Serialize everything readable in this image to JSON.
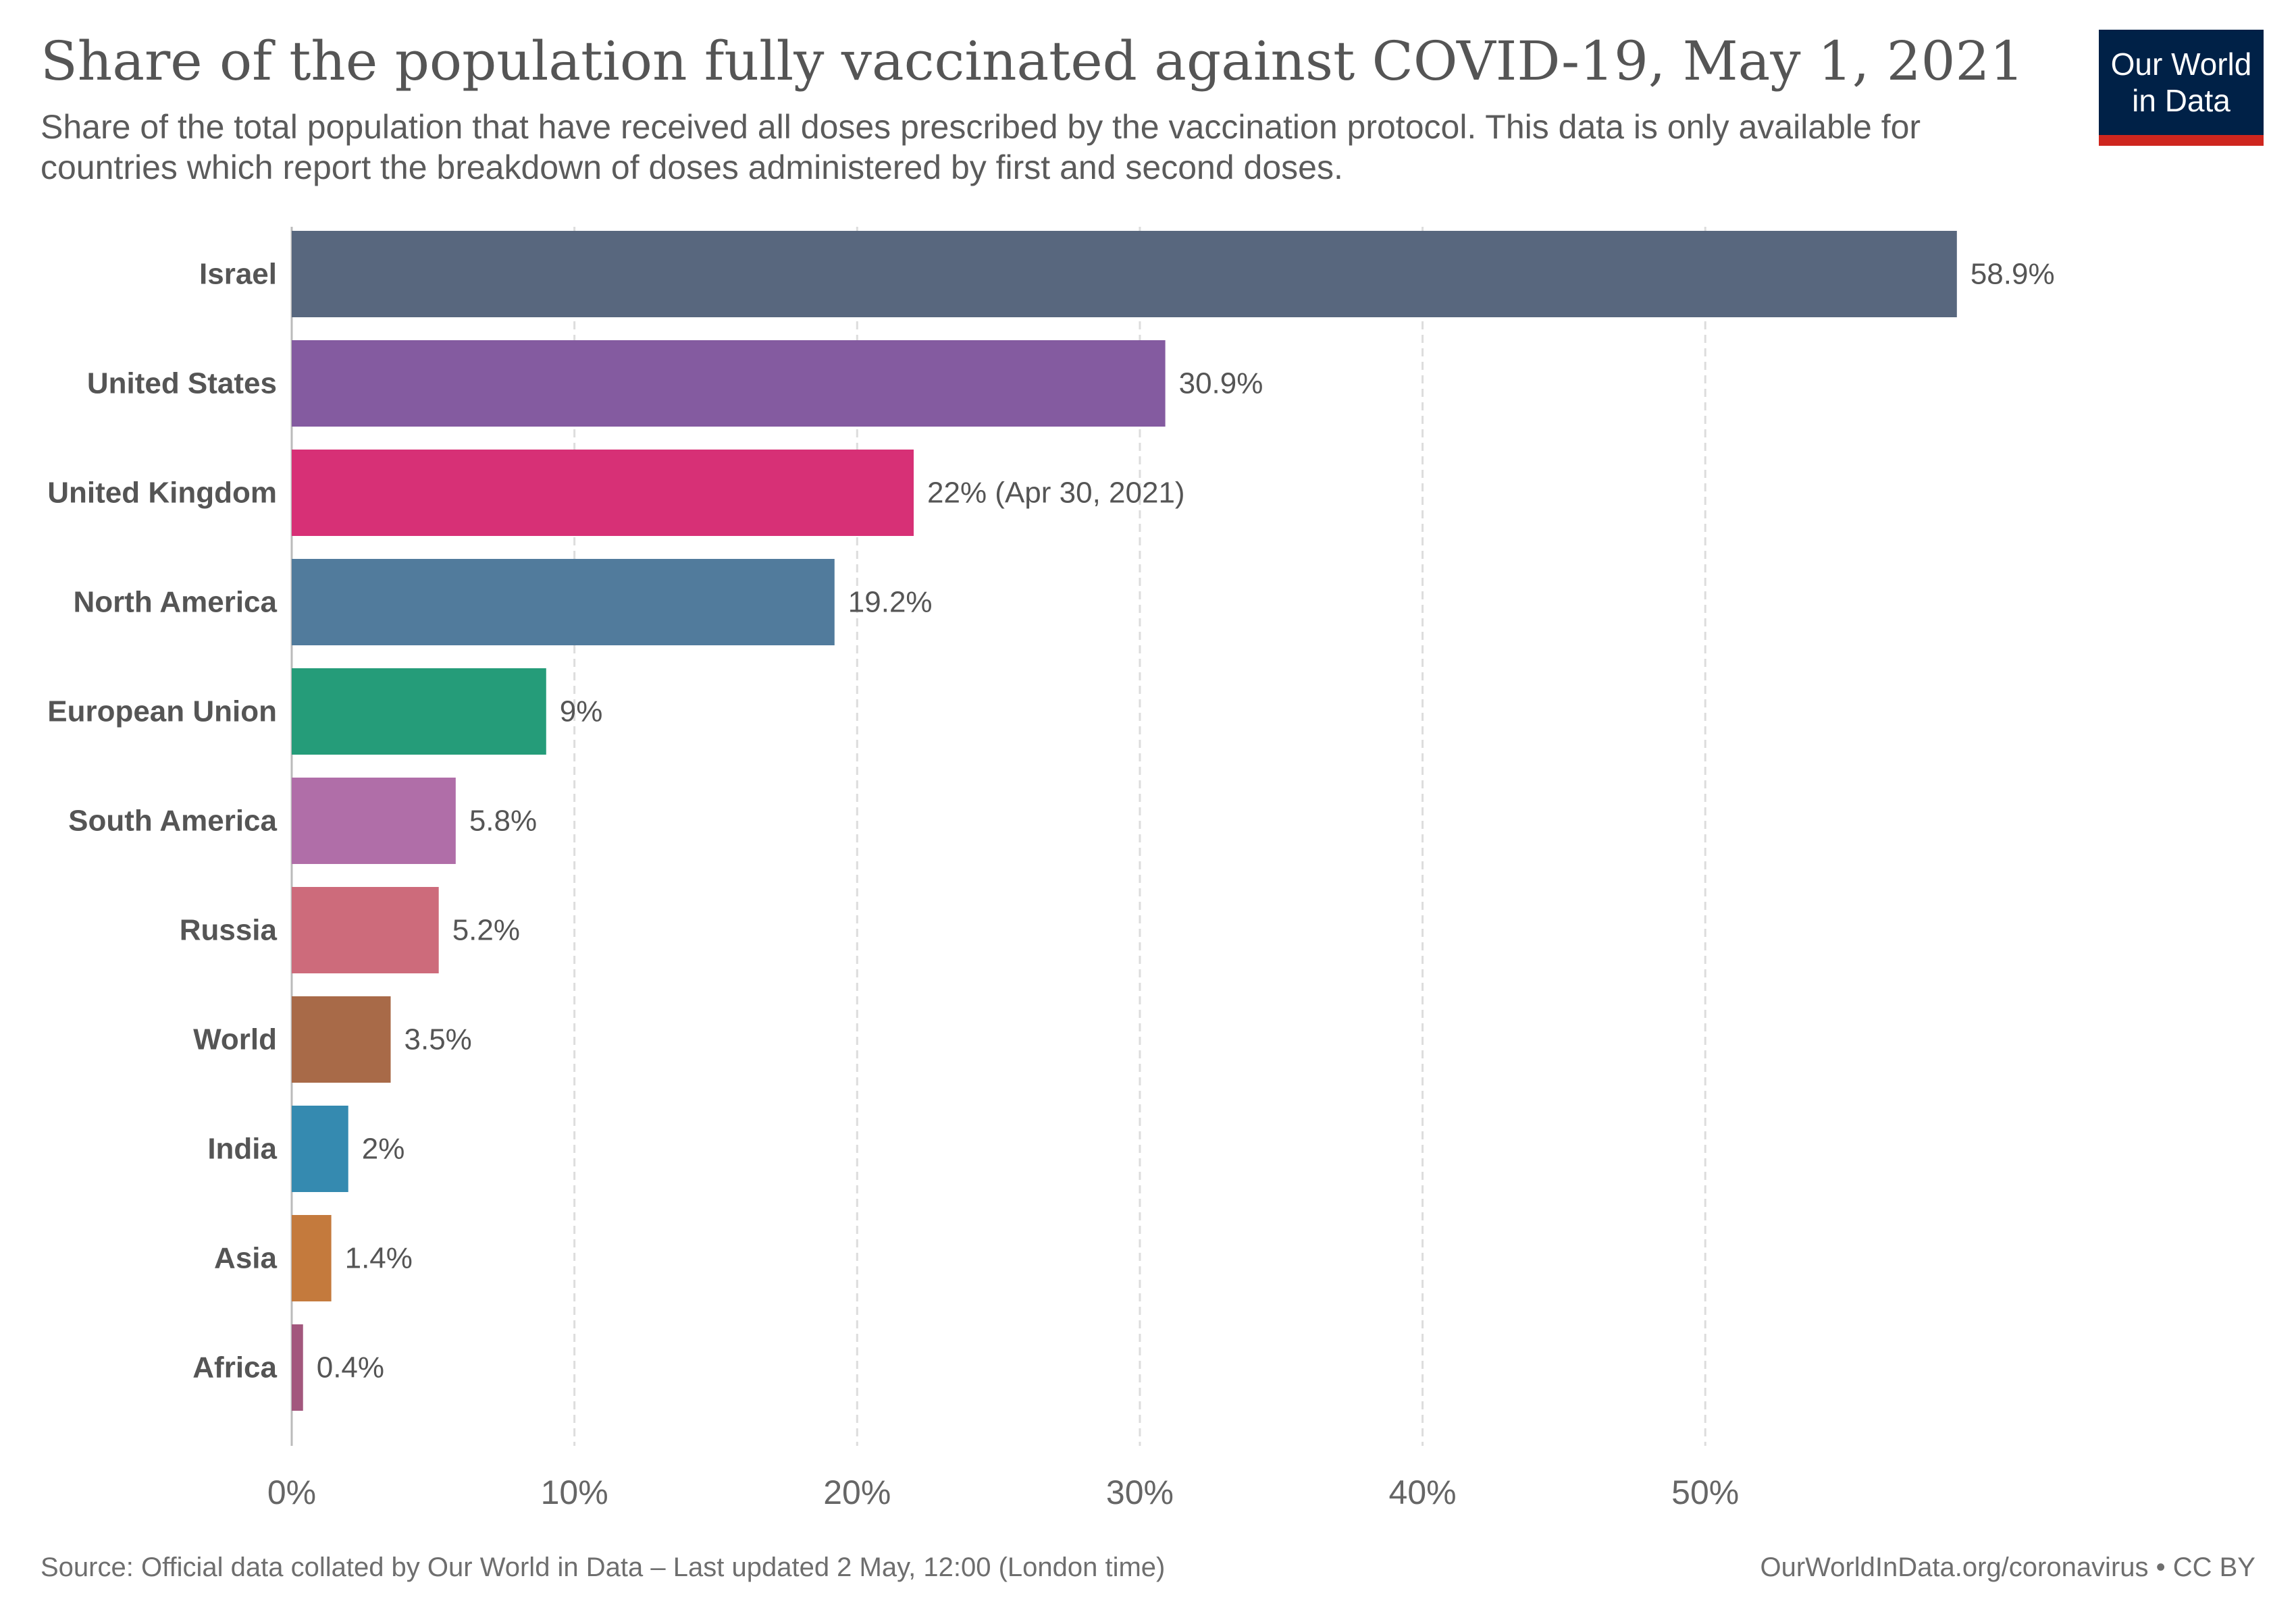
{
  "header": {
    "title": "Share of the population fully vaccinated against COVID-19, May 1, 2021",
    "subtitle": "Share of the total population that have received all doses prescribed by the vaccination protocol. This data is only available for countries which report the breakdown of doses administered by first and second doses."
  },
  "logo": {
    "line1": "Our World",
    "line2": "in Data",
    "bg_color": "#002147",
    "accent_color": "#ce261e"
  },
  "footer": {
    "source": "Source: Official data collated by Our World in Data – Last updated 2 May, 12:00 (London time)",
    "credit": "OurWorldInData.org/coronavirus • CC BY"
  },
  "chart_data": {
    "type": "bar",
    "orientation": "horizontal",
    "categories": [
      "Israel",
      "United States",
      "United Kingdom",
      "North America",
      "European Union",
      "South America",
      "Russia",
      "World",
      "India",
      "Asia",
      "Africa"
    ],
    "values": [
      58.9,
      30.9,
      22,
      19.2,
      9,
      5.8,
      5.2,
      3.5,
      2,
      1.4,
      0.4
    ],
    "value_labels": [
      "58.9%",
      "30.9%",
      "22% (Apr 30, 2021)",
      "19.2%",
      "9%",
      "5.8%",
      "5.2%",
      "3.5%",
      "2%",
      "1.4%",
      "0.4%"
    ],
    "colors": [
      "#58677e",
      "#845ba0",
      "#d73076",
      "#517b9c",
      "#259c79",
      "#b06ea8",
      "#cd6b7b",
      "#a86a48",
      "#358ab0",
      "#c47a3d",
      "#a2577d"
    ],
    "xlim": [
      0,
      59
    ],
    "xticks": [
      0,
      10,
      20,
      30,
      40,
      50
    ],
    "xtick_labels": [
      "0%",
      "10%",
      "20%",
      "30%",
      "40%",
      "50%"
    ],
    "grid": "vertical dashed",
    "xlabel": "",
    "ylabel": ""
  }
}
